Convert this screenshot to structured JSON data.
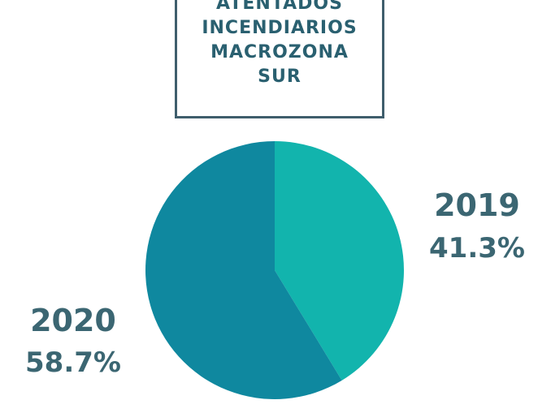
{
  "title_lines": [
    "ATENTADOS",
    "INCENDIARIOS",
    "MACROZONA",
    "SUR"
  ],
  "chart_data": {
    "type": "pie",
    "title": "ATENTADOS INCENDIARIOS MACROZONA SUR",
    "categories": [
      "2019",
      "2020"
    ],
    "values": [
      41.3,
      58.7
    ],
    "value_labels": [
      "41.3%",
      "58.7%"
    ],
    "colors": [
      "#12b4ad",
      "#0f889f"
    ],
    "start": "12 o'clock, clockwise"
  }
}
